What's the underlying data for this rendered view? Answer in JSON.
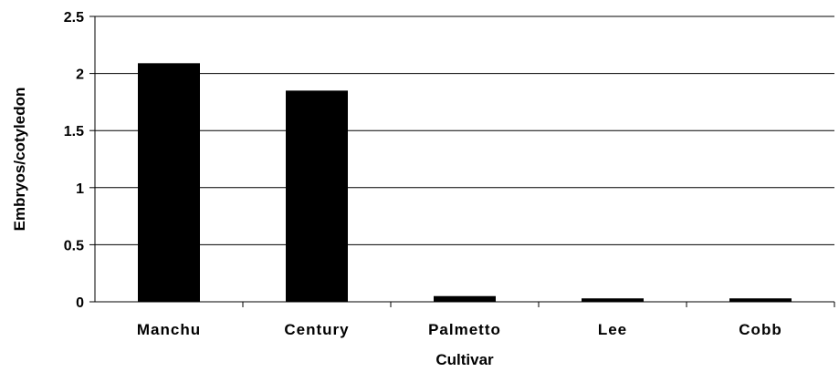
{
  "chart_data": {
    "type": "bar",
    "categories": [
      "Manchu",
      "Century",
      "Palmetto",
      "Lee",
      "Cobb"
    ],
    "values": [
      2.09,
      1.85,
      0.05,
      0.03,
      0.03
    ],
    "title": "",
    "xlabel": "Cultivar",
    "ylabel": "Embryos/cotyledon",
    "ylim": [
      0,
      2.5
    ],
    "yticks": [
      "0",
      "0.5",
      "1",
      "1.5",
      "2",
      "2.5"
    ],
    "grid": true,
    "bar_color": "#000000"
  }
}
